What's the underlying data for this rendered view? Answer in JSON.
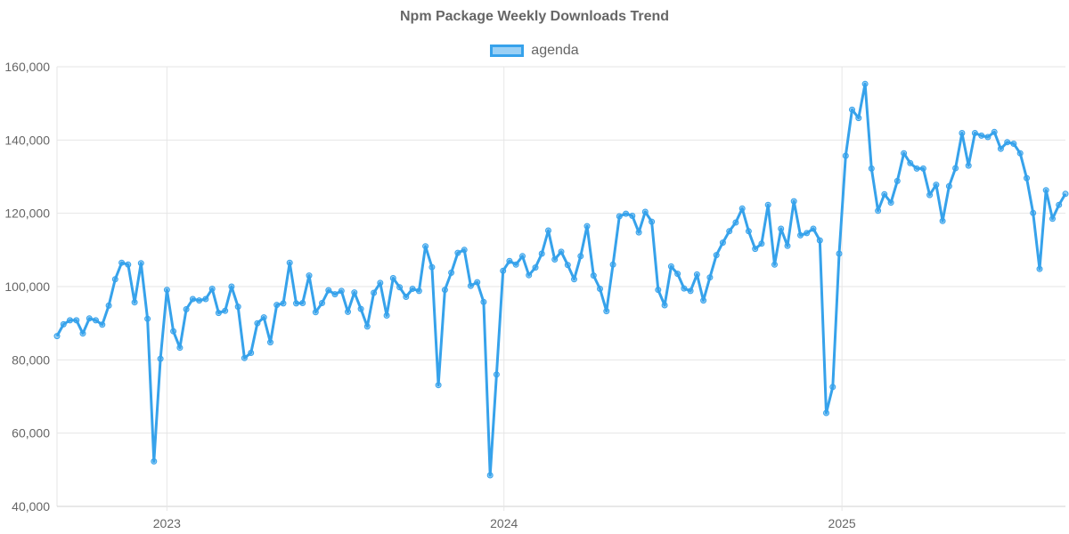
{
  "title": "Npm Package Weekly Downloads Trend",
  "colors": {
    "line": "#36a2eb",
    "fill": "rgba(54,162,235,0.5)",
    "grid": "#e6e6e6",
    "text": "#666666"
  },
  "chart_data": {
    "type": "line",
    "title": "Npm Package Weekly Downloads Trend",
    "legend_position": "top",
    "grid": true,
    "ylim": [
      40000,
      160000
    ],
    "yticks": [
      "160,000",
      "140,000",
      "120,000",
      "100,000",
      "80,000",
      "60,000",
      "40,000"
    ],
    "ytick_values": [
      160000,
      140000,
      120000,
      100000,
      80000,
      60000,
      40000
    ],
    "xticks": [
      "2023",
      "2024",
      "2025"
    ],
    "xtick_dates": [
      "2023-01-01",
      "2024-01-01",
      "2025-01-01"
    ],
    "xlim": [
      "2022-09-04",
      "2025-08-31"
    ],
    "series": [
      {
        "name": "agenda",
        "start_date": "2022-09-04",
        "interval_days": 7,
        "values": [
          86500,
          89700,
          90800,
          90800,
          87200,
          91300,
          90800,
          89600,
          94800,
          102000,
          106500,
          106000,
          95700,
          106400,
          91200,
          52300,
          80300,
          99100,
          87800,
          83300,
          93800,
          96600,
          96200,
          96600,
          99400,
          92800,
          93400,
          100000,
          94500,
          80500,
          81900,
          90000,
          91600,
          84800,
          95000,
          95400,
          106500,
          95400,
          95500,
          103000,
          93000,
          95500,
          99000,
          97900,
          98800,
          93100,
          98400,
          93900,
          89100,
          98300,
          101000,
          92100,
          102300,
          99800,
          97200,
          99400,
          98800,
          111000,
          105300,
          73100,
          99100,
          103800,
          109200,
          110000,
          100200,
          101200,
          95800,
          48500,
          76000,
          104300,
          107000,
          106000,
          108300,
          103100,
          105200,
          109000,
          115300,
          107400,
          109500,
          105900,
          102000,
          108300,
          116500,
          103000,
          99400,
          93300,
          106000,
          119200,
          119900,
          119300,
          114800,
          120400,
          117700,
          99100,
          94900,
          105500,
          103500,
          99500,
          98800,
          103300,
          96200,
          102500,
          108600,
          112000,
          115100,
          117500,
          121300,
          115100,
          110300,
          111700,
          122300,
          106000,
          115800,
          111100,
          123300,
          114000,
          114600,
          115800,
          112600,
          65500,
          72600,
          109000,
          135700,
          148300,
          146000,
          155300,
          132200,
          120700,
          125200,
          122900,
          128800,
          136400,
          133700,
          132200,
          132200,
          125000,
          127800,
          117900,
          127400,
          132300,
          141900,
          133000,
          141900,
          141200,
          140800,
          142200,
          137600,
          139400,
          139000,
          136400,
          129600,
          120100,
          104800,
          126300,
          118500,
          122300,
          125300
        ]
      }
    ]
  }
}
